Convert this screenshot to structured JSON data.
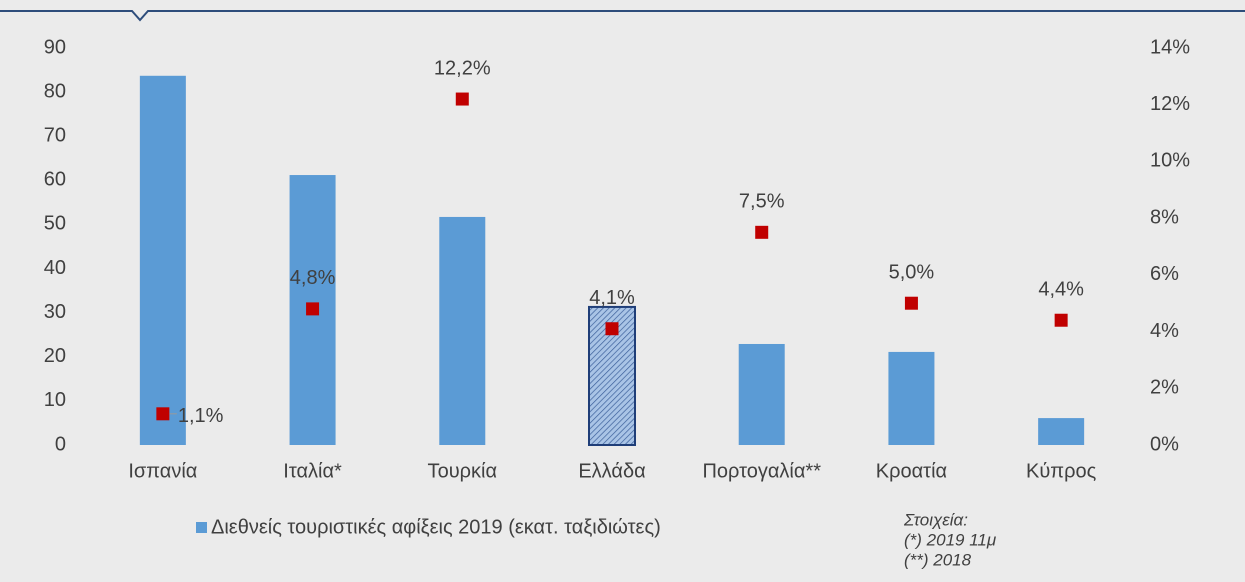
{
  "chart_data": {
    "type": "bar",
    "categories": [
      "Ισπανία",
      "Ιταλία*",
      "Τουρκία",
      "Ελλάδα",
      "Πορτογαλία**",
      "Κροατία",
      "Κύπρος"
    ],
    "series": [
      {
        "name": "Διεθνείς  τουριστικές αφίξεις 2019 (εκατ. ταξιδιώτες)",
        "color": "#5b9bd5",
        "values": [
          83.7,
          61.2,
          51.7,
          31.3,
          22.9,
          21.1,
          6.1
        ]
      },
      {
        "type": "scatter",
        "axis": "y2",
        "color": "#c00000",
        "values": [
          1.1,
          4.8,
          12.2,
          4.1,
          7.5,
          5.0,
          4.4
        ],
        "value_labels": [
          "1,1%",
          "4,8%",
          "12,2%",
          "4,1%",
          "7,5%",
          "5,0%",
          "4,4%"
        ]
      }
    ],
    "highlight_index": 3,
    "ylim": [
      0,
      90
    ],
    "yticks": [
      0,
      10,
      20,
      30,
      40,
      50,
      60,
      70,
      80,
      90
    ],
    "y2lim": [
      0,
      14
    ],
    "y2ticks": [
      {
        "value": 0,
        "label": "0%"
      },
      {
        "value": 2,
        "label": "2%"
      },
      {
        "value": 4,
        "label": "4%"
      },
      {
        "value": 6,
        "label": "6%"
      },
      {
        "value": 8,
        "label": "8%"
      },
      {
        "value": 10,
        "label": "10%"
      },
      {
        "value": 12,
        "label": "12%"
      },
      {
        "value": 14,
        "label": "14%"
      }
    ],
    "notes": [
      "Στοιχεία:",
      "(*) 2019 11μ",
      "(**) 2018"
    ]
  }
}
